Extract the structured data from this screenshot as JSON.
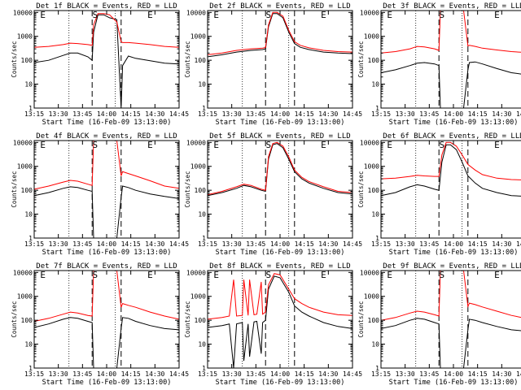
{
  "figure": {
    "rows": 3,
    "cols": 3,
    "colors": {
      "events": "#000000",
      "lld": "#ff0000"
    },
    "x_ticks": [
      "13:15",
      "13:30",
      "13:45",
      "14:00",
      "14:15",
      "14:30",
      "14:45"
    ],
    "y_ticks": [
      "1",
      "10",
      "100",
      "1000",
      "10000"
    ],
    "markers": [
      "E",
      "S",
      "E"
    ]
  },
  "chart_data": [
    {
      "type": "line",
      "title": "Det 1f BLACK = Events, RED = LLD",
      "xlabel": "Start Time (16-Feb-09 13:13:00)",
      "ylabel": "Counts/sec",
      "xlim": [
        0,
        100
      ],
      "ylim": [
        1,
        12000
      ],
      "yscale": "log",
      "vlines_dotted": [
        24,
        56
      ],
      "vlines_dashed": [
        40,
        60
      ],
      "markers": [
        "E",
        "S",
        "E"
      ],
      "markers_x": [
        6,
        42,
        80
      ],
      "x": [
        0,
        10,
        20,
        25,
        30,
        37,
        40,
        41,
        44,
        48,
        52,
        57,
        60,
        61,
        65,
        70,
        80,
        90,
        100
      ],
      "series": [
        {
          "name": "Events",
          "color": "#000000",
          "values": [
            80,
            100,
            160,
            200,
            200,
            140,
            100,
            1500,
            8000,
            8000,
            6000,
            5000,
            0,
            60,
            150,
            120,
            95,
            75,
            70
          ]
        },
        {
          "name": "LLD",
          "color": "#ff0000",
          "values": [
            350,
            380,
            450,
            520,
            500,
            450,
            420,
            3000,
            9000,
            9000,
            8000,
            4000,
            600,
            550,
            550,
            520,
            450,
            380,
            350
          ]
        }
      ]
    },
    {
      "type": "line",
      "title": "Det 2f BLACK = Events, RED = LLD",
      "xlabel": "Start Time (16-Feb-09 13:13:00)",
      "ylabel": "Counts/sec",
      "xlim": [
        0,
        100
      ],
      "ylim": [
        1,
        12000
      ],
      "yscale": "log",
      "vlines_dotted": [
        24,
        56
      ],
      "vlines_dashed": [
        40,
        60
      ],
      "markers": [
        "E",
        "S",
        "E"
      ],
      "markers_x": [
        6,
        42,
        80
      ],
      "x": [
        0,
        10,
        20,
        30,
        38,
        40,
        42,
        45,
        48,
        52,
        56,
        60,
        64,
        70,
        80,
        90,
        100
      ],
      "series": [
        {
          "name": "Events",
          "color": "#000000",
          "values": [
            140,
            170,
            220,
            260,
            280,
            300,
            2500,
            9000,
            9000,
            6000,
            1500,
            500,
            350,
            280,
            220,
            200,
            190
          ]
        },
        {
          "name": "LLD",
          "color": "#ff0000",
          "values": [
            170,
            200,
            260,
            300,
            320,
            340,
            3000,
            10000,
            10000,
            7000,
            1800,
            600,
            420,
            330,
            260,
            230,
            220
          ]
        }
      ]
    },
    {
      "type": "line",
      "title": "Det 3f BLACK = Events, RED = LLD",
      "xlabel": "Start Time (16-Feb-09 13:13:00)",
      "ylabel": "Counts/sec",
      "xlim": [
        0,
        100
      ],
      "ylim": [
        1,
        12000
      ],
      "yscale": "log",
      "vlines_dotted": [
        24,
        56
      ],
      "vlines_dashed": [
        40,
        60
      ],
      "markers": [
        "E",
        "S",
        "E"
      ],
      "markers_x": [
        6,
        42,
        80
      ],
      "x": [
        0,
        10,
        20,
        25,
        30,
        37,
        40,
        41,
        44,
        48,
        52,
        57,
        60,
        61,
        65,
        70,
        80,
        90,
        100
      ],
      "series": [
        {
          "name": "Events",
          "color": "#000000",
          "values": [
            30,
            40,
            60,
            75,
            80,
            70,
            60,
            0,
            0,
            0,
            0,
            0,
            40,
            80,
            85,
            70,
            45,
            30,
            25
          ]
        },
        {
          "name": "LLD",
          "color": "#ff0000",
          "values": [
            200,
            230,
            300,
            380,
            360,
            300,
            260,
            12000,
            12000,
            12000,
            12000,
            12000,
            400,
            420,
            380,
            320,
            270,
            230,
            210
          ]
        }
      ]
    },
    {
      "type": "line",
      "title": "Det 4f BLACK = Events, RED = LLD",
      "xlabel": "Start Time (16-Feb-09 13:13:00)",
      "ylabel": "Counts/sec",
      "xlim": [
        0,
        100
      ],
      "ylim": [
        1,
        12000
      ],
      "yscale": "log",
      "vlines_dotted": [
        24,
        56
      ],
      "vlines_dashed": [
        40,
        60
      ],
      "markers": [
        "E",
        "S",
        "E"
      ],
      "markers_x": [
        6,
        42,
        80
      ],
      "x": [
        0,
        10,
        20,
        25,
        30,
        37,
        40,
        41,
        44,
        48,
        52,
        57,
        60,
        61,
        65,
        70,
        80,
        90,
        100
      ],
      "series": [
        {
          "name": "Events",
          "color": "#000000",
          "values": [
            60,
            80,
            120,
            140,
            130,
            100,
            90,
            0,
            0,
            0,
            0,
            0,
            50,
            150,
            130,
            100,
            70,
            55,
            45
          ]
        },
        {
          "name": "LLD",
          "color": "#ff0000",
          "values": [
            110,
            150,
            220,
            260,
            240,
            180,
            160,
            12000,
            12000,
            12000,
            12000,
            12000,
            400,
            600,
            500,
            400,
            250,
            150,
            120
          ]
        }
      ]
    },
    {
      "type": "line",
      "title": "Det 5f BLACK = Events, RED = LLD",
      "xlabel": "Start Time (16-Feb-09 13:13:00)",
      "ylabel": "Counts/sec",
      "xlim": [
        0,
        100
      ],
      "ylim": [
        1,
        12000
      ],
      "yscale": "log",
      "vlines_dotted": [
        24,
        56
      ],
      "vlines_dashed": [
        40,
        60
      ],
      "markers": [
        "E",
        "S",
        "E"
      ],
      "markers_x": [
        6,
        42,
        80
      ],
      "x": [
        0,
        10,
        20,
        25,
        30,
        37,
        40,
        42,
        45,
        48,
        52,
        56,
        60,
        65,
        70,
        80,
        90,
        100
      ],
      "series": [
        {
          "name": "Events",
          "color": "#000000",
          "values": [
            60,
            80,
            120,
            160,
            140,
            100,
            90,
            2000,
            8000,
            9000,
            6000,
            2000,
            600,
            300,
            200,
            120,
            80,
            70
          ]
        },
        {
          "name": "LLD",
          "color": "#ff0000",
          "values": [
            65,
            90,
            140,
            180,
            160,
            110,
            100,
            2500,
            9000,
            10000,
            7000,
            2500,
            700,
            350,
            230,
            140,
            90,
            80
          ]
        }
      ]
    },
    {
      "type": "line",
      "title": "Det 6f BLACK = Events, RED = LLD",
      "xlabel": "Start Time (16-Feb-09 13:13:00)",
      "ylabel": "Counts/sec",
      "xlim": [
        0,
        100
      ],
      "ylim": [
        1,
        12000
      ],
      "yscale": "log",
      "vlines_dotted": [
        24,
        56
      ],
      "vlines_dashed": [
        40,
        60
      ],
      "markers": [
        "E",
        "S",
        "E"
      ],
      "markers_x": [
        6,
        42,
        80
      ],
      "x": [
        0,
        10,
        20,
        25,
        30,
        37,
        40,
        42,
        45,
        48,
        52,
        56,
        60,
        65,
        70,
        80,
        90,
        100
      ],
      "series": [
        {
          "name": "Events",
          "color": "#000000",
          "values": [
            60,
            80,
            140,
            170,
            150,
            110,
            100,
            1500,
            8000,
            8000,
            5000,
            1500,
            400,
            200,
            120,
            80,
            60,
            55
          ]
        },
        {
          "name": "LLD",
          "color": "#ff0000",
          "values": [
            300,
            320,
            380,
            420,
            400,
            380,
            380,
            3000,
            10000,
            10000,
            7000,
            3000,
            1200,
            700,
            450,
            320,
            280,
            270
          ]
        }
      ]
    },
    {
      "type": "line",
      "title": "Det 7f BLACK = Events, RED = LLD",
      "xlabel": "Start Time (16-Feb-09 13:13:00)",
      "ylabel": "Counts/sec",
      "xlim": [
        0,
        100
      ],
      "ylim": [
        1,
        12000
      ],
      "yscale": "log",
      "vlines_dotted": [
        24,
        56
      ],
      "vlines_dashed": [
        40,
        60
      ],
      "markers": [
        "E",
        "S",
        "E"
      ],
      "markers_x": [
        6,
        42,
        80
      ],
      "x": [
        0,
        10,
        20,
        25,
        30,
        37,
        40,
        41,
        44,
        48,
        52,
        57,
        60,
        61,
        65,
        70,
        80,
        90,
        100
      ],
      "series": [
        {
          "name": "Events",
          "color": "#000000",
          "values": [
            50,
            70,
            110,
            130,
            120,
            90,
            80,
            0,
            0,
            0,
            0,
            0,
            45,
            130,
            120,
            90,
            60,
            45,
            40
          ]
        },
        {
          "name": "LLD",
          "color": "#ff0000",
          "values": [
            90,
            120,
            180,
            220,
            200,
            160,
            150,
            12000,
            12000,
            12000,
            12000,
            12000,
            350,
            500,
            420,
            350,
            220,
            150,
            110
          ]
        }
      ]
    },
    {
      "type": "line",
      "title": "Det 8f BLACK = Events, RED = LLD",
      "xlabel": "Start Time (16-Feb-09 13:13:00)",
      "ylabel": "Counts/sec",
      "xlim": [
        0,
        100
      ],
      "ylim": [
        1,
        12000
      ],
      "yscale": "log",
      "vlines_dotted": [
        24,
        56
      ],
      "vlines_dashed": [
        40,
        60
      ],
      "markers": [
        "E",
        "S",
        "E"
      ],
      "markers_x": [
        6,
        42,
        80
      ],
      "x": [
        0,
        10,
        15,
        18,
        20,
        24,
        25,
        28,
        29,
        32,
        34,
        37,
        38,
        40,
        42,
        46,
        50,
        56,
        60,
        65,
        70,
        80,
        90,
        100
      ],
      "series": [
        {
          "name": "Events",
          "color": "#000000",
          "values": [
            50,
            60,
            70,
            1,
            70,
            80,
            2,
            70,
            3,
            85,
            90,
            4,
            80,
            100,
            2000,
            7000,
            6000,
            1500,
            400,
            220,
            150,
            80,
            55,
            45
          ]
        },
        {
          "name": "LLD",
          "color": "#ff0000",
          "values": [
            110,
            130,
            150,
            5000,
            150,
            160,
            5000,
            160,
            5000,
            170,
            180,
            4000,
            180,
            220,
            3000,
            9000,
            8000,
            2000,
            800,
            500,
            350,
            220,
            170,
            160
          ]
        }
      ]
    },
    {
      "type": "line",
      "title": "Det 9f BLACK = Events, RED = LLD",
      "xlabel": "Start Time (16-Feb-09 13:13:00)",
      "ylabel": "Counts/sec",
      "xlim": [
        0,
        100
      ],
      "ylim": [
        1,
        12000
      ],
      "yscale": "log",
      "vlines_dotted": [
        24,
        56
      ],
      "vlines_dashed": [
        40,
        60
      ],
      "markers": [
        "E",
        "S",
        "E"
      ],
      "markers_x": [
        6,
        42,
        80
      ],
      "x": [
        0,
        10,
        20,
        25,
        30,
        37,
        40,
        41,
        44,
        48,
        52,
        57,
        60,
        61,
        65,
        70,
        80,
        90,
        100
      ],
      "series": [
        {
          "name": "Events",
          "color": "#000000",
          "values": [
            45,
            60,
            100,
            120,
            110,
            80,
            70,
            0,
            0,
            0,
            0,
            0,
            40,
            110,
            100,
            80,
            55,
            40,
            35
          ]
        },
        {
          "name": "LLD",
          "color": "#ff0000",
          "values": [
            100,
            130,
            200,
            240,
            220,
            170,
            150,
            12000,
            12000,
            12000,
            12000,
            12000,
            380,
            520,
            450,
            360,
            240,
            160,
            120
          ]
        }
      ]
    }
  ]
}
